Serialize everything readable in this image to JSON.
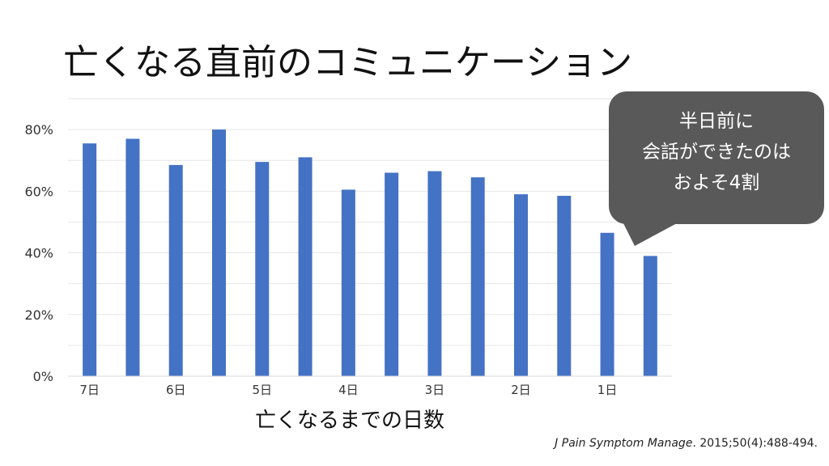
{
  "title": "亡くなる直前のコミュニケーション",
  "callout": {
    "lines": [
      "半日前に",
      "会話ができたのは",
      "およそ4割"
    ]
  },
  "citation": {
    "journal": "J Pain Symptom Manage",
    "rest": ". 2015;50(4):488-494."
  },
  "chart_data": {
    "type": "bar",
    "title": "",
    "xlabel": "亡くなるまでの日数",
    "ylabel": "",
    "ylim": [
      0,
      90
    ],
    "yticks": [
      0,
      20,
      40,
      60,
      80
    ],
    "ytick_labels": [
      "0%",
      "20%",
      "40%",
      "60%",
      "80%"
    ],
    "x_tick_labels": [
      "7日",
      "",
      "6日",
      "",
      "5日",
      "",
      "4日",
      "",
      "3日",
      "",
      "2日",
      "",
      "1日",
      ""
    ],
    "values": [
      75.5,
      77,
      68.5,
      80,
      69.5,
      71,
      60.5,
      66,
      66.5,
      64.5,
      59,
      58.5,
      46.5,
      39
    ],
    "bar_color": "#4472c4",
    "grid": true
  }
}
